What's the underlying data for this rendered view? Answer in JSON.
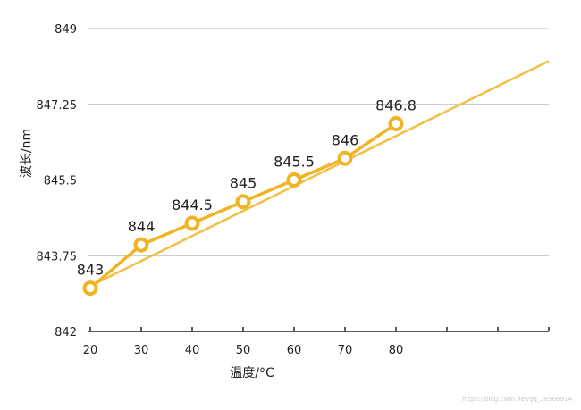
{
  "chart_data": {
    "type": "line",
    "xlabel": "温度/°C",
    "ylabel": "波长/nm",
    "xlim": [
      20,
      110
    ],
    "ylim": [
      842,
      849
    ],
    "x_ticks": [
      20,
      30,
      40,
      50,
      60,
      70,
      80
    ],
    "x_tick_marks_extra": [
      90,
      100,
      110
    ],
    "y_ticks": [
      842,
      843.75,
      845.5,
      847.25,
      849
    ],
    "y_tick_labels": [
      "842",
      "843.75",
      "845.5",
      "847.25",
      "849"
    ],
    "grid": true,
    "series": [
      {
        "type": "line-markers",
        "x": [
          20,
          30,
          40,
          50,
          60,
          70,
          80
        ],
        "y": [
          843,
          844,
          844.5,
          845,
          845.5,
          846,
          846.8
        ],
        "data_labels": [
          "843",
          "844",
          "844.5",
          "845",
          "845.5",
          "846",
          "846.8"
        ],
        "color": "#f0b323"
      },
      {
        "type": "trendline",
        "x": [
          20,
          110
        ],
        "y": [
          843.05,
          848.25
        ],
        "color": "#f0b323"
      }
    ]
  },
  "watermark": "https://blog.csdn.net/qq_38566914"
}
